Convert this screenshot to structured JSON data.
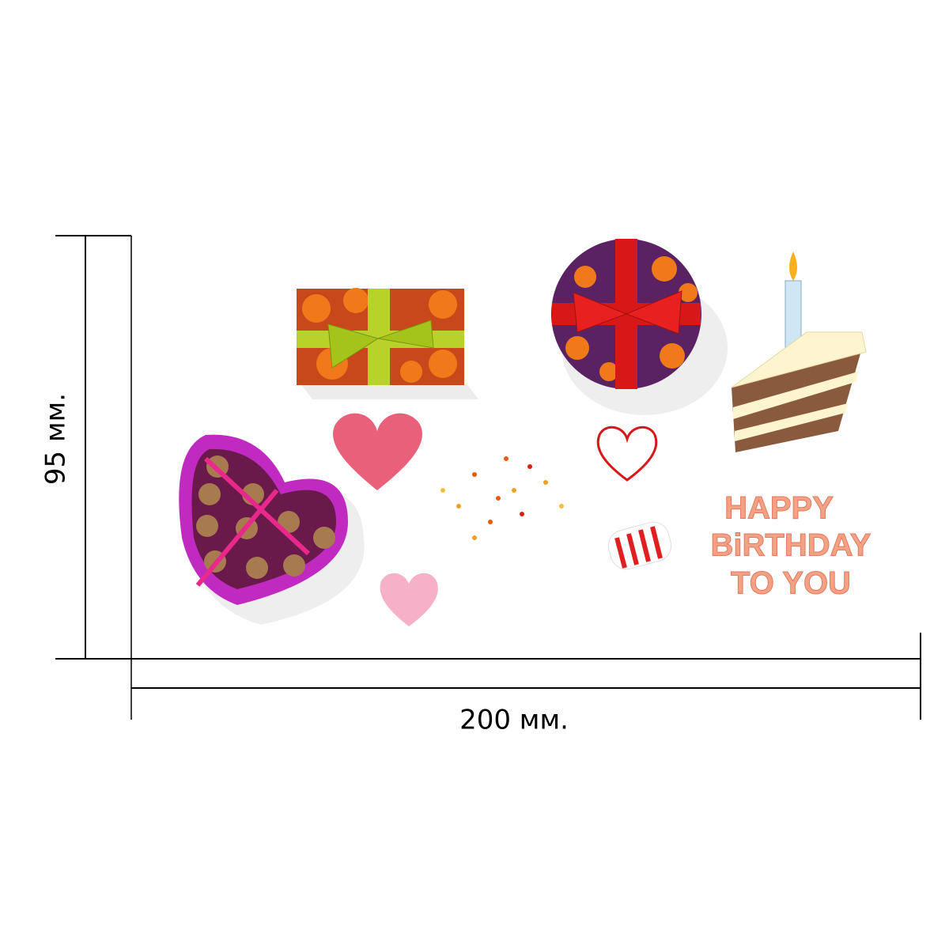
{
  "dimensions": {
    "height_label": "95 мм.",
    "width_label": "200 мм."
  },
  "sticker_text": {
    "lines": [
      "HAPPY",
      "BiRTHDAY",
      "TO YOU"
    ]
  }
}
